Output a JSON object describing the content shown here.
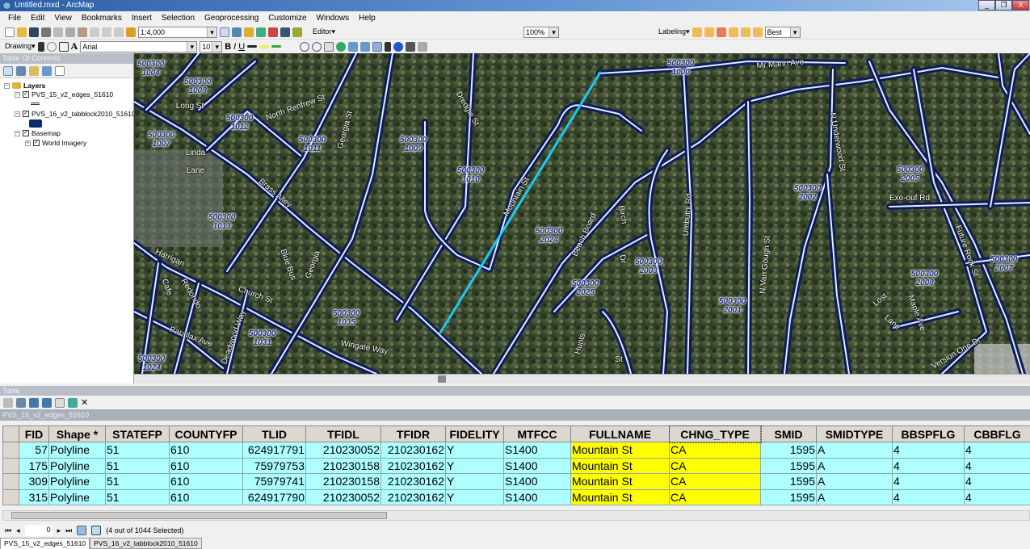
{
  "window": {
    "title": "Untitled.mxd - ArcMap",
    "minimize": "_",
    "restore": "❐",
    "close": "X"
  },
  "menu": [
    "File",
    "Edit",
    "View",
    "Bookmarks",
    "Insert",
    "Selection",
    "Geoprocessing",
    "Customize",
    "Windows",
    "Help"
  ],
  "toolbar": {
    "scale": "1:4,000",
    "editor": "Editor▾",
    "drawing": "Drawing▾",
    "font": "Arial",
    "font_size": "10",
    "bold": "B",
    "italic": "I",
    "underline": "U",
    "zoom_percent": "100%",
    "labeling": "Labeling▾",
    "label_quality": "Best"
  },
  "toc": {
    "title": "Table Of Contents",
    "root": "Layers",
    "layers": [
      {
        "name": "PVS_15_v2_edges_51610",
        "checked": true
      },
      {
        "name": "PVS_16_v2_tabblock2010_51610",
        "checked": true,
        "swatch": "#0a2a6e"
      },
      {
        "name": "Basemap",
        "checked": true
      },
      {
        "name": "World Imagery",
        "checked": true
      }
    ]
  },
  "map": {
    "highlight_color": "#1ec8f0",
    "road_color": "#0d1d5c",
    "blocks": [
      {
        "tract": "500300",
        "block": "1004"
      },
      {
        "tract": "500300",
        "block": "1008"
      },
      {
        "tract": "500300",
        "block": "1012"
      },
      {
        "tract": "500300",
        "block": "1007"
      },
      {
        "tract": "500300",
        "block": "1011"
      },
      {
        "tract": "500300",
        "block": "1009"
      },
      {
        "tract": "500300",
        "block": "1010"
      },
      {
        "tract": "500300",
        "block": "2024"
      },
      {
        "tract": "500300",
        "block": "1013"
      },
      {
        "tract": "500300",
        "block": "1035"
      },
      {
        "tract": "500300",
        "block": "1031"
      },
      {
        "tract": "500300",
        "block": "1024"
      },
      {
        "tract": "500300",
        "block": "2025"
      },
      {
        "tract": "500300",
        "block": "2003"
      },
      {
        "tract": "500300",
        "block": "2001"
      },
      {
        "tract": "500300",
        "block": "2002"
      },
      {
        "tract": "500300",
        "block": "2005"
      },
      {
        "tract": "500300",
        "block": "2007"
      },
      {
        "tract": "500300",
        "block": "2008"
      },
      {
        "tract": "500300",
        "block": "1000"
      }
    ],
    "streets": [
      "Long St",
      "North Renfrew St",
      "Georgia St",
      "Dredgie St",
      "Mountain St",
      "Linda",
      "Lane",
      "Brass Alley",
      "Harrigan",
      "Cafe",
      "Redondo",
      "Church St",
      "Parallax Ave",
      "Deadwood Way",
      "Blue Bus",
      "Georgia",
      "Wingate Way",
      "Beach Board",
      "Birch",
      "Dr",
      "Umbuthi Rd",
      "N Van Gough St",
      "Hunts",
      "St",
      "Mr Mann Ave",
      "N Underwood St",
      "Exo-ouf Rd",
      "Future Rock St",
      "Lost",
      "Lane",
      "Maple Ave",
      "Version One Dr"
    ]
  },
  "table": {
    "title": "Table",
    "layer": "PVS_15_v2_edges_51610",
    "columns": [
      "FID",
      "Shape *",
      "STATEFP",
      "COUNTYFP",
      "TLID",
      "TFIDL",
      "TFIDR",
      "FIDELITY",
      "MTFCC",
      "FULLNAME",
      "CHNG_TYPE",
      "SMID",
      "SMIDTYPE",
      "BBSPFLG",
      "CBBFLG"
    ],
    "rows": [
      [
        "57",
        "Polyline",
        "51",
        "610",
        "624917791",
        "210230052",
        "210230162",
        "Y",
        "S1400",
        "Mountain St",
        "CA",
        "1595",
        "A",
        "4",
        "4"
      ],
      [
        "175",
        "Polyline",
        "51",
        "610",
        "75979753",
        "210230158",
        "210230162",
        "Y",
        "S1400",
        "Mountain St",
        "CA",
        "1595",
        "A",
        "4",
        "4"
      ],
      [
        "309",
        "Polyline",
        "51",
        "610",
        "75979741",
        "210230158",
        "210230162",
        "Y",
        "S1400",
        "Mountain St",
        "CA",
        "1595",
        "A",
        "4",
        "4"
      ],
      [
        "315",
        "Polyline",
        "51",
        "610",
        "624917790",
        "210230052",
        "210230162",
        "Y",
        "S1400",
        "Mountain St",
        "CA",
        "1595",
        "A",
        "4",
        "4"
      ]
    ],
    "record": "0",
    "status": "(4 out of 1044 Selected)",
    "tabs": [
      "PVS_15_v2_edges_51610",
      "PVS_16_v2_tabblock2010_51610"
    ]
  }
}
